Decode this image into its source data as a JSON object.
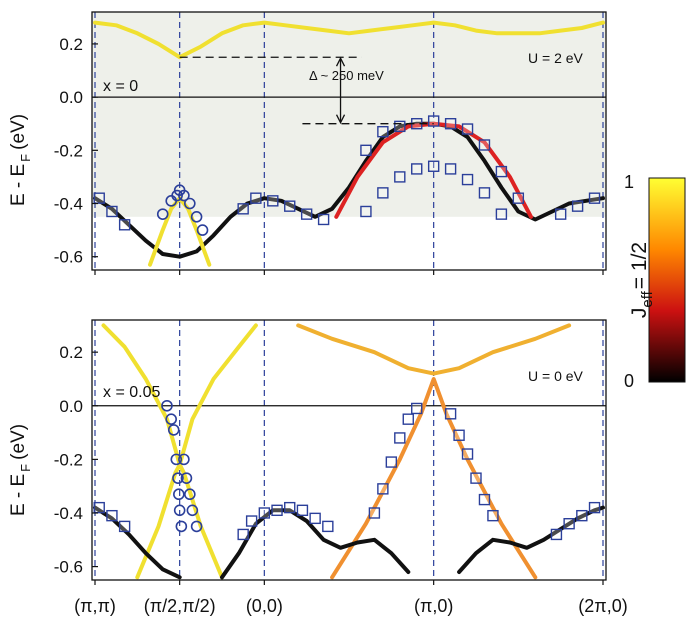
{
  "figure": {
    "xtick_labels": [
      "(π,π)",
      "(π/2,π/2)",
      "(0,0)",
      "(π,0)",
      "(2π,0)"
    ],
    "ylabel": "E - E",
    "ylabel_sub": "F",
    "ylabel_unit": "(eV)",
    "colorbar": {
      "label": "J",
      "label_sub": "eff",
      "label_suffix": "= 1/2",
      "min_label": "0",
      "max_label": "1",
      "colors": [
        "#000000",
        "#cc0000",
        "#ff8800",
        "#ffff33"
      ]
    }
  },
  "chart_data": [
    {
      "type": "line",
      "panel": "top",
      "x_ticks": [
        "(π,π)",
        "(π/2,π/2)",
        "(0,0)",
        "(π,0)",
        "(2π,0)"
      ],
      "ylim": [
        -0.65,
        0.32
      ],
      "yticks": [
        "0.2",
        "0.0",
        "-0.2",
        "-0.4",
        "-0.6"
      ],
      "ytick_values": [
        0.2,
        0.0,
        -0.2,
        -0.4,
        -0.6
      ],
      "ylabel": "E - E F (eV)",
      "annotations": {
        "left": "x = 0",
        "right": "U = 2 eV",
        "gap": "Δ ~ 250 meV"
      },
      "gap_lines": [
        0.15,
        -0.1
      ],
      "shaded_region": [
        -0.45,
        0.28
      ],
      "series": [
        {
          "color": "#f0e030",
          "x": [
            0,
            0.25,
            0.5,
            0.75,
            1,
            1.25,
            1.5,
            1.75,
            2,
            2.25,
            2.5,
            2.75,
            3,
            3.25,
            3.5,
            3.75,
            4,
            4.25,
            4.5,
            4.75,
            5,
            5.25,
            5.5,
            5.75,
            6
          ],
          "y": [
            0.28,
            0.27,
            0.24,
            0.2,
            0.15,
            0.19,
            0.24,
            0.27,
            0.28,
            0.27,
            0.26,
            0.25,
            0.24,
            0.25,
            0.26,
            0.27,
            0.28,
            0.27,
            0.25,
            0.24,
            0.24,
            0.24,
            0.25,
            0.26,
            0.28
          ]
        },
        {
          "color": "#111111",
          "x": [
            0,
            0.2,
            0.4,
            0.6,
            0.8,
            1,
            1.2,
            1.4,
            1.6,
            1.8,
            2,
            2.2,
            2.4,
            2.6,
            2.8,
            3,
            3.2,
            3.4,
            3.6,
            3.8,
            4,
            4.2,
            4.4,
            4.6,
            4.8,
            5,
            5.2,
            5.4,
            5.6,
            5.8,
            6
          ],
          "y": [
            -0.38,
            -0.42,
            -0.48,
            -0.54,
            -0.59,
            -0.6,
            -0.58,
            -0.52,
            -0.45,
            -0.4,
            -0.38,
            -0.39,
            -0.42,
            -0.45,
            -0.42,
            -0.34,
            -0.24,
            -0.15,
            -0.11,
            -0.1,
            -0.1,
            -0.11,
            -0.15,
            -0.24,
            -0.34,
            -0.43,
            -0.46,
            -0.43,
            -0.4,
            -0.39,
            -0.38
          ]
        },
        {
          "color": "#dd2222",
          "x": [
            2.85,
            3.1,
            3.4,
            3.7,
            4,
            4.3,
            4.6,
            4.9,
            5.15
          ],
          "y": [
            -0.45,
            -0.3,
            -0.17,
            -0.11,
            -0.1,
            -0.11,
            -0.17,
            -0.3,
            -0.45
          ]
        },
        {
          "color": "#f0e030",
          "x": [
            0.65,
            0.8,
            0.9,
            1,
            1.1,
            1.2,
            1.35
          ],
          "y": [
            -0.63,
            -0.5,
            -0.42,
            -0.38,
            -0.42,
            -0.5,
            -0.63
          ]
        }
      ],
      "markers_squares": {
        "x": [
          0.05,
          0.2,
          0.35,
          1.75,
          1.9,
          2.1,
          2.3,
          2.5,
          2.7,
          3.2,
          3.4,
          3.6,
          3.8,
          4,
          4.2,
          4.4,
          4.6,
          4.8,
          5.0,
          5.5,
          5.7,
          5.9
        ],
        "y": [
          -0.38,
          -0.43,
          -0.48,
          -0.42,
          -0.38,
          -0.39,
          -0.41,
          -0.44,
          -0.46,
          -0.2,
          -0.13,
          -0.11,
          -0.1,
          -0.09,
          -0.1,
          -0.12,
          -0.18,
          -0.28,
          -0.38,
          -0.44,
          -0.41,
          -0.38
        ]
      },
      "markers_squares_lower": {
        "x": [
          3.2,
          3.4,
          3.6,
          3.8,
          4,
          4.2,
          4.4,
          4.6,
          4.8
        ],
        "y": [
          -0.43,
          -0.36,
          -0.3,
          -0.27,
          -0.26,
          -0.27,
          -0.31,
          -0.36,
          -0.44
        ]
      },
      "markers_circles": {
        "x": [
          0.8,
          0.9,
          0.97,
          1.0,
          1.05,
          1.12,
          1.2,
          1.27
        ],
        "y": [
          -0.44,
          -0.39,
          -0.37,
          -0.35,
          -0.37,
          -0.4,
          -0.45,
          -0.5
        ]
      }
    },
    {
      "type": "line",
      "panel": "bottom",
      "x_ticks": [
        "(π,π)",
        "(π/2,π/2)",
        "(0,0)",
        "(π,0)",
        "(2π,0)"
      ],
      "ylim": [
        -0.65,
        0.32
      ],
      "yticks": [
        "0.2",
        "0.0",
        "-0.2",
        "-0.4",
        "-0.6"
      ],
      "ytick_values": [
        0.2,
        0.0,
        -0.2,
        -0.4,
        -0.6
      ],
      "ylabel": "E - E F (eV)",
      "annotations": {
        "left": "x = 0.05",
        "right": "U = 0 eV"
      },
      "series": [
        {
          "color": "#f0e030",
          "x": [
            0.1,
            0.35,
            0.6,
            0.85,
            1.0,
            1.15,
            1.4,
            1.7,
            1.9
          ],
          "y": [
            0.3,
            0.22,
            0.1,
            -0.05,
            -0.22,
            -0.05,
            0.1,
            0.22,
            0.3
          ]
        },
        {
          "color": "#f0e030",
          "x": [
            0.5,
            0.75,
            0.95,
            1.0,
            1.05,
            1.25,
            1.5
          ],
          "y": [
            -0.64,
            -0.45,
            -0.25,
            -0.22,
            -0.25,
            -0.45,
            -0.64
          ]
        },
        {
          "color": "#f0b030",
          "x": [
            2.4,
            2.8,
            3.3,
            3.7,
            4,
            4.3,
            4.7,
            5.2,
            5.6
          ],
          "y": [
            0.3,
            0.25,
            0.2,
            0.14,
            0.12,
            0.14,
            0.2,
            0.25,
            0.3
          ]
        },
        {
          "color": "#f09030",
          "x": [
            2.8,
            3.2,
            3.6,
            3.85,
            4,
            4.15,
            4.4,
            4.8,
            5.2
          ],
          "y": [
            -0.64,
            -0.44,
            -0.2,
            -0.03,
            0.1,
            -0.03,
            -0.2,
            -0.44,
            -0.64
          ]
        },
        {
          "color": "#111111",
          "x": [
            0,
            0.2,
            0.4,
            0.6,
            0.8,
            1.0
          ],
          "y": [
            -0.38,
            -0.42,
            -0.48,
            -0.55,
            -0.61,
            -0.64
          ]
        },
        {
          "color": "#111111",
          "x": [
            1.5,
            1.7,
            1.9,
            2.1,
            2.3,
            2.5,
            2.7,
            2.9,
            3.1,
            3.3,
            3.5,
            3.7
          ],
          "y": [
            -0.64,
            -0.55,
            -0.44,
            -0.39,
            -0.39,
            -0.43,
            -0.5,
            -0.53,
            -0.51,
            -0.5,
            -0.55,
            -0.62
          ]
        },
        {
          "color": "#111111",
          "x": [
            4.3,
            4.5,
            4.7,
            4.9,
            5.1,
            5.3,
            5.5,
            5.7,
            5.9,
            6
          ],
          "y": [
            -0.62,
            -0.55,
            -0.5,
            -0.51,
            -0.53,
            -0.5,
            -0.46,
            -0.42,
            -0.39,
            -0.38
          ]
        }
      ],
      "markers_squares": {
        "x": [
          0.05,
          0.2,
          0.35,
          1.75,
          1.85,
          2.0,
          2.15,
          2.3,
          2.45,
          2.6,
          2.75,
          3.3,
          3.4,
          3.5,
          3.6,
          3.7,
          3.8,
          4.2,
          4.3,
          4.4,
          4.5,
          4.6,
          4.7,
          5.45,
          5.6,
          5.75,
          5.9
        ],
        "y": [
          -0.38,
          -0.41,
          -0.45,
          -0.48,
          -0.43,
          -0.4,
          -0.39,
          -0.38,
          -0.39,
          -0.42,
          -0.45,
          -0.4,
          -0.31,
          -0.21,
          -0.12,
          -0.05,
          -0.01,
          -0.03,
          -0.11,
          -0.18,
          -0.27,
          -0.35,
          -0.41,
          -0.48,
          -0.44,
          -0.41,
          -0.38
        ]
      },
      "markers_circles": {
        "x": [
          0.85,
          0.9,
          0.93,
          0.96,
          0.98,
          0.99,
          1.0,
          1.02,
          1.05,
          1.08,
          1.12,
          1.15,
          1.2
        ],
        "y": [
          0,
          -0.05,
          -0.09,
          -0.2,
          -0.27,
          -0.33,
          -0.39,
          -0.45,
          -0.2,
          -0.27,
          -0.33,
          -0.39,
          -0.45
        ]
      }
    }
  ]
}
